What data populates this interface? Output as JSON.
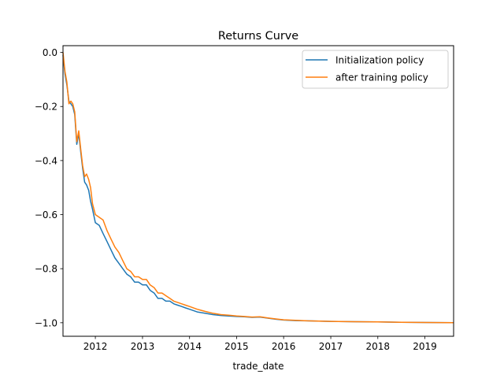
{
  "chart_data": {
    "type": "line",
    "title": "Returns Curve",
    "xlabel": "trade_date",
    "ylabel": "",
    "x_axis": {
      "type": "date",
      "range": [
        "2011-04-25",
        "2019-08-12"
      ],
      "ticks": [
        {
          "date": "2012-01-01",
          "label": "2012"
        },
        {
          "date": "2013-01-01",
          "label": "2013"
        },
        {
          "date": "2014-01-01",
          "label": "2014"
        },
        {
          "date": "2015-01-01",
          "label": "2015"
        },
        {
          "date": "2016-01-01",
          "label": "2016"
        },
        {
          "date": "2017-01-01",
          "label": "2017"
        },
        {
          "date": "2018-01-01",
          "label": "2018"
        },
        {
          "date": "2019-01-01",
          "label": "2019"
        }
      ]
    },
    "y_axis": {
      "range": [
        -1.05,
        0.025
      ],
      "ticks": [
        {
          "value": 0.0,
          "label": "0.0"
        },
        {
          "value": -0.2,
          "label": "−0.2"
        },
        {
          "value": -0.4,
          "label": "−0.4"
        },
        {
          "value": -0.6,
          "label": "−0.6"
        },
        {
          "value": -0.8,
          "label": "−0.8"
        },
        {
          "value": -1.0,
          "label": "−1.0"
        }
      ]
    },
    "grid": false,
    "legend_position": "top-right",
    "series": [
      {
        "name": "Initialization policy",
        "color": "#1f77b4",
        "x": [
          "2011-04-25",
          "2011-05-10",
          "2011-05-25",
          "2011-06-10",
          "2011-06-25",
          "2011-07-10",
          "2011-07-25",
          "2011-08-10",
          "2011-08-25",
          "2011-09-10",
          "2011-09-25",
          "2011-10-10",
          "2011-10-25",
          "2011-11-10",
          "2011-11-25",
          "2011-12-10",
          "2012-01-01",
          "2012-02-01",
          "2012-03-01",
          "2012-04-01",
          "2012-05-01",
          "2012-06-01",
          "2012-07-01",
          "2012-08-01",
          "2012-09-01",
          "2012-10-01",
          "2012-11-01",
          "2012-12-01",
          "2013-01-01",
          "2013-02-01",
          "2013-03-01",
          "2013-04-01",
          "2013-05-01",
          "2013-06-01",
          "2013-07-01",
          "2013-08-01",
          "2013-09-01",
          "2013-10-01",
          "2013-11-01",
          "2013-12-01",
          "2014-01-01",
          "2014-03-01",
          "2014-05-01",
          "2014-07-01",
          "2014-09-01",
          "2014-11-01",
          "2015-01-01",
          "2015-03-01",
          "2015-05-01",
          "2015-07-01",
          "2015-09-01",
          "2015-11-01",
          "2016-01-01",
          "2016-04-01",
          "2016-07-01",
          "2017-01-01",
          "2017-07-01",
          "2018-01-01",
          "2018-07-01",
          "2019-01-01",
          "2019-08-12"
        ],
        "y": [
          -0.01,
          -0.08,
          -0.12,
          -0.18,
          -0.19,
          -0.2,
          -0.23,
          -0.34,
          -0.3,
          -0.37,
          -0.43,
          -0.48,
          -0.49,
          -0.51,
          -0.55,
          -0.58,
          -0.63,
          -0.64,
          -0.67,
          -0.7,
          -0.73,
          -0.76,
          -0.78,
          -0.8,
          -0.82,
          -0.83,
          -0.85,
          -0.85,
          -0.86,
          -0.86,
          -0.88,
          -0.89,
          -0.91,
          -0.91,
          -0.92,
          -0.92,
          -0.93,
          -0.935,
          -0.94,
          -0.945,
          -0.95,
          -0.96,
          -0.965,
          -0.97,
          -0.973,
          -0.975,
          -0.977,
          -0.978,
          -0.98,
          -0.979,
          -0.983,
          -0.987,
          -0.99,
          -0.992,
          -0.993,
          -0.995,
          -0.996,
          -0.997,
          -0.998,
          -0.999,
          -1.0
        ]
      },
      {
        "name": "after training policy",
        "color": "#ff7f0e",
        "x": [
          "2011-04-25",
          "2011-05-10",
          "2011-05-25",
          "2011-06-10",
          "2011-06-25",
          "2011-07-10",
          "2011-07-25",
          "2011-08-10",
          "2011-08-25",
          "2011-09-10",
          "2011-09-25",
          "2011-10-10",
          "2011-10-25",
          "2011-11-10",
          "2011-11-25",
          "2011-12-10",
          "2012-01-01",
          "2012-02-01",
          "2012-03-01",
          "2012-04-01",
          "2012-05-01",
          "2012-06-01",
          "2012-07-01",
          "2012-08-01",
          "2012-09-01",
          "2012-10-01",
          "2012-11-01",
          "2012-12-01",
          "2013-01-01",
          "2013-02-01",
          "2013-03-01",
          "2013-04-01",
          "2013-05-01",
          "2013-06-01",
          "2013-07-01",
          "2013-08-01",
          "2013-09-01",
          "2013-10-01",
          "2013-11-01",
          "2013-12-01",
          "2014-01-01",
          "2014-03-01",
          "2014-05-01",
          "2014-07-01",
          "2014-09-01",
          "2014-11-01",
          "2015-01-01",
          "2015-03-01",
          "2015-05-01",
          "2015-07-01",
          "2015-09-01",
          "2015-11-01",
          "2016-01-01",
          "2016-04-01",
          "2016-07-01",
          "2017-01-01",
          "2017-07-01",
          "2018-01-01",
          "2018-07-01",
          "2019-01-01",
          "2019-08-12"
        ],
        "y": [
          0.0,
          -0.07,
          -0.11,
          -0.19,
          -0.18,
          -0.19,
          -0.22,
          -0.33,
          -0.29,
          -0.36,
          -0.42,
          -0.46,
          -0.45,
          -0.47,
          -0.5,
          -0.56,
          -0.6,
          -0.61,
          -0.62,
          -0.66,
          -0.69,
          -0.72,
          -0.74,
          -0.77,
          -0.8,
          -0.81,
          -0.83,
          -0.83,
          -0.84,
          -0.84,
          -0.86,
          -0.87,
          -0.89,
          -0.89,
          -0.9,
          -0.91,
          -0.92,
          -0.925,
          -0.93,
          -0.935,
          -0.94,
          -0.95,
          -0.958,
          -0.965,
          -0.97,
          -0.972,
          -0.975,
          -0.977,
          -0.979,
          -0.978,
          -0.982,
          -0.986,
          -0.989,
          -0.991,
          -0.993,
          -0.995,
          -0.996,
          -0.997,
          -0.998,
          -0.999,
          -1.0
        ]
      }
    ]
  }
}
